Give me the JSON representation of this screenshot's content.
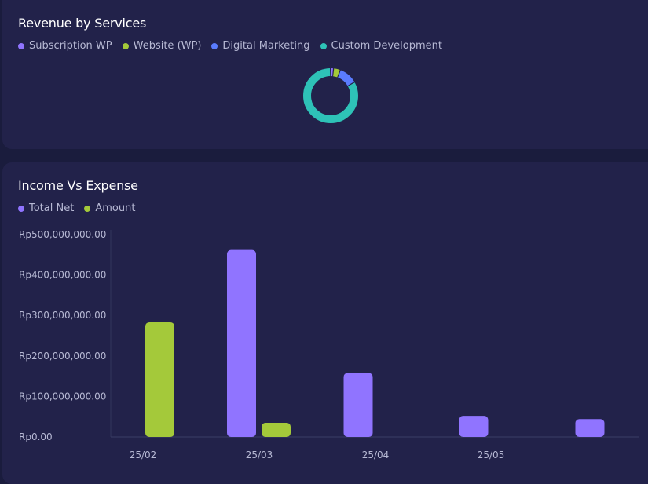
{
  "colors": {
    "subscription": "#9074ff",
    "website": "#a4c93a",
    "digital": "#5a7cff",
    "custom": "#2ec2b7",
    "total_net": "#9074ff",
    "amount": "#a4c93a"
  },
  "revenue": {
    "title": "Revenue by Services",
    "legend": [
      "Subscription WP",
      "Website (WP)",
      "Digital Marketing",
      "Custom Development"
    ]
  },
  "income": {
    "title": "Income Vs Expense",
    "legend": [
      "Total Net",
      "Amount"
    ]
  },
  "chart_data": [
    {
      "type": "pie",
      "title": "Revenue by Services",
      "labels": [
        "Subscription WP",
        "Website (WP)",
        "Digital Marketing",
        "Custom Development"
      ],
      "values": [
        2,
        4,
        11,
        83
      ]
    },
    {
      "type": "bar",
      "title": "Income Vs Expense",
      "categories": [
        "25/02",
        "25/03",
        "25/04",
        "25/05",
        ""
      ],
      "series": [
        {
          "name": "Total Net",
          "values": [
            0,
            462000000,
            158000000,
            52000000,
            44000000
          ]
        },
        {
          "name": "Amount",
          "values": [
            283000000,
            35000000,
            0,
            0,
            0
          ]
        }
      ],
      "ylim": [
        0,
        500000000
      ],
      "yticks": [
        0,
        100000000,
        200000000,
        300000000,
        400000000,
        500000000
      ],
      "ytick_labels": [
        "Rp0.00",
        "Rp100,000,000.00",
        "Rp200,000,000.00",
        "Rp300,000,000.00",
        "Rp400,000,000.00",
        "Rp500,000,000.00"
      ]
    }
  ]
}
